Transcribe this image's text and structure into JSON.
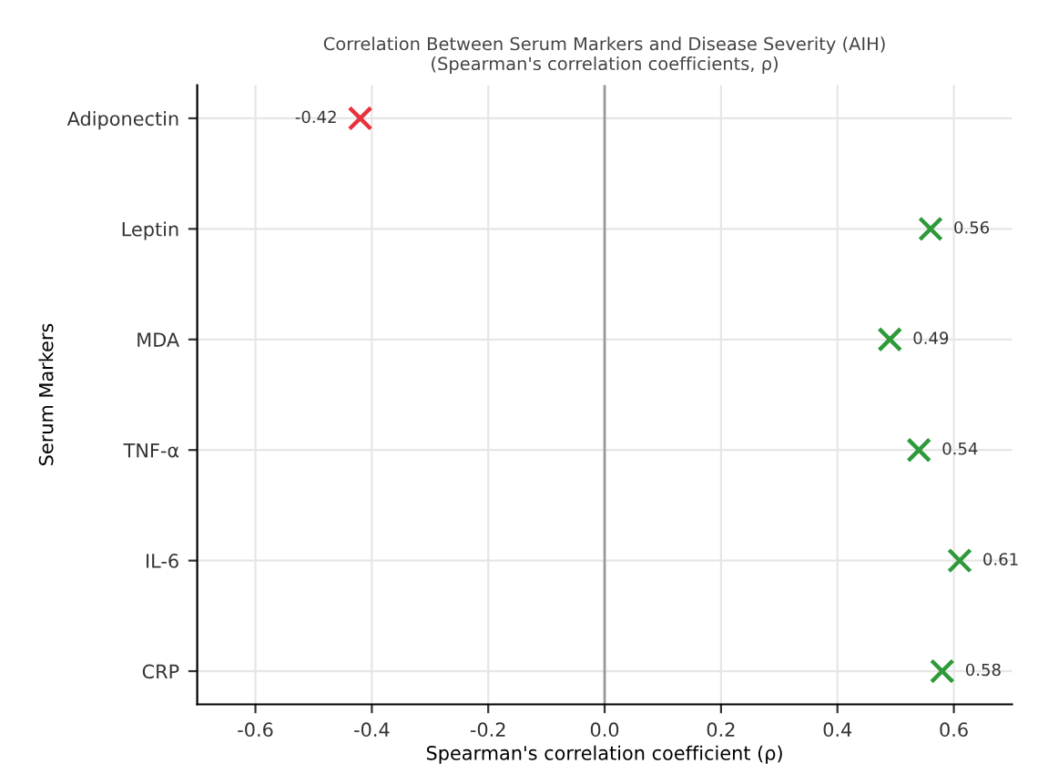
{
  "chart_data": {
    "type": "scatter",
    "orientation": "horizontal",
    "title": "Correlation Between Serum Markers and Disease Severity (AIH)\n(Spearman's correlation coefficients, ρ)",
    "xlabel": "Spearman's correlation coefficient (ρ)",
    "ylabel": "Serum Markers",
    "categories": [
      "Adiponectin",
      "Leptin",
      "MDA",
      "TNF-α",
      "IL-6",
      "CRP"
    ],
    "values": [
      -0.42,
      0.56,
      0.49,
      0.54,
      0.61,
      0.58
    ],
    "colors": [
      "#e8323c",
      "#2e9a3a",
      "#2e9a3a",
      "#2e9a3a",
      "#2e9a3a",
      "#2e9a3a"
    ],
    "value_labels": [
      "-0.42",
      "0.56",
      "0.49",
      "0.54",
      "0.61",
      "0.58"
    ],
    "marker": "cross",
    "xlim": [
      -0.7,
      0.7
    ],
    "xticks": [
      -0.6,
      -0.4,
      -0.2,
      {
        "value": 0,
        "label": "0.0"
      },
      0.2,
      0.4,
      0.6
    ],
    "ref_lines": [
      {
        "axis": "x",
        "value": 0,
        "color": "#999999",
        "line_style": "solid"
      }
    ],
    "grid": true
  }
}
